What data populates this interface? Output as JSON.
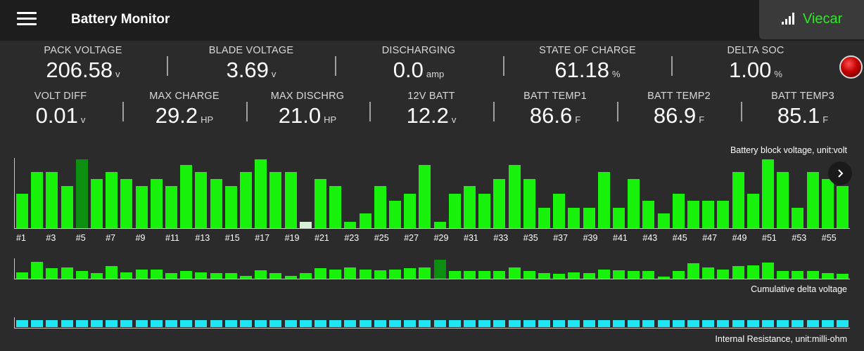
{
  "app": {
    "title": "Battery Monitor",
    "device_label": "Viecar"
  },
  "icons": {
    "menu": "hamburger-menu-icon",
    "signal": "signal-bars-icon",
    "alarm": "red-status-led",
    "next": "chevron-right-icon"
  },
  "colors": {
    "bar_green": "#18f20b",
    "bar_dark": "#0c8f10",
    "bar_pale": "#d8f0d8",
    "cyan": "#1ee6f2",
    "accent": "#31e626"
  },
  "stats_row1": [
    {
      "label": "PACK VOLTAGE",
      "value": "206.58",
      "unit": "v"
    },
    {
      "label": "BLADE VOLTAGE",
      "value": "3.69",
      "unit": "v"
    },
    {
      "label": "DISCHARGING",
      "value": "0.0",
      "unit": "amp"
    },
    {
      "label": "STATE OF CHARGE",
      "value": "61.18",
      "unit": "%"
    },
    {
      "label": "DELTA SOC",
      "value": "1.00",
      "unit": "%"
    }
  ],
  "stats_row2": [
    {
      "label": "VOLT DIFF",
      "value": "0.01",
      "unit": "v"
    },
    {
      "label": "MAX CHARGE",
      "value": "29.2",
      "unit": "HP"
    },
    {
      "label": "MAX DISCHRG",
      "value": "21.0",
      "unit": "HP"
    },
    {
      "label": "12V BATT",
      "value": "12.2",
      "unit": "v"
    },
    {
      "label": "BATT TEMP1",
      "value": "86.6",
      "unit": "F"
    },
    {
      "label": "BATT TEMP2",
      "value": "86.9",
      "unit": "F"
    },
    {
      "label": "BATT TEMP3",
      "value": "85.1",
      "unit": "F"
    }
  ],
  "chart_data": [
    {
      "type": "bar",
      "title": "Battery block voltage, unit:volt",
      "categories": [
        "#1",
        "#2",
        "#3",
        "#4",
        "#5",
        "#6",
        "#7",
        "#8",
        "#9",
        "#10",
        "#11",
        "#12",
        "#13",
        "#14",
        "#15",
        "#16",
        "#17",
        "#18",
        "#19",
        "#20",
        "#21",
        "#22",
        "#23",
        "#24",
        "#25",
        "#26",
        "#27",
        "#28",
        "#29",
        "#30",
        "#31",
        "#32",
        "#33",
        "#34",
        "#35",
        "#36",
        "#37",
        "#38",
        "#39",
        "#40",
        "#41",
        "#42",
        "#43",
        "#44",
        "#45",
        "#46",
        "#47",
        "#48",
        "#49",
        "#50",
        "#51",
        "#52",
        "#53",
        "#54",
        "#55",
        "#56"
      ],
      "tick_labels": [
        "#1",
        "#3",
        "#5",
        "#7",
        "#9",
        "#11",
        "#13",
        "#15",
        "#17",
        "#19",
        "#21",
        "#23",
        "#25",
        "#27",
        "#29",
        "#31",
        "#33",
        "#35",
        "#37",
        "#39",
        "#41",
        "#43",
        "#45",
        "#47",
        "#49",
        "#51",
        "#53",
        "#55"
      ],
      "values": [
        0.5,
        0.82,
        0.82,
        0.61,
        1.0,
        0.71,
        0.82,
        0.71,
        0.61,
        0.71,
        0.61,
        0.92,
        0.82,
        0.71,
        0.61,
        0.82,
        1.0,
        0.82,
        0.82,
        0.09,
        0.71,
        0.61,
        0.09,
        0.21,
        0.61,
        0.4,
        0.5,
        0.92,
        0.09,
        0.5,
        0.61,
        0.5,
        0.71,
        0.92,
        0.71,
        0.3,
        0.5,
        0.3,
        0.3,
        0.82,
        0.3,
        0.71,
        0.4,
        0.21,
        0.5,
        0.4,
        0.4,
        0.4,
        0.82,
        0.5,
        1.0,
        0.82,
        0.3,
        0.82,
        0.71,
        0.61
      ],
      "highlight": {
        "max_index": 4,
        "min_index": 19
      },
      "ylim": [
        0,
        1
      ]
    },
    {
      "type": "bar",
      "title": "Cumulative delta voltage",
      "values": [
        0.35,
        0.9,
        0.55,
        0.6,
        0.4,
        0.3,
        0.65,
        0.35,
        0.5,
        0.5,
        0.3,
        0.4,
        0.35,
        0.3,
        0.3,
        0.15,
        0.45,
        0.3,
        0.15,
        0.3,
        0.55,
        0.5,
        0.6,
        0.5,
        0.45,
        0.5,
        0.55,
        0.6,
        1.0,
        0.4,
        0.4,
        0.4,
        0.4,
        0.6,
        0.4,
        0.3,
        0.25,
        0.35,
        0.3,
        0.5,
        0.45,
        0.4,
        0.4,
        0.1,
        0.4,
        0.8,
        0.6,
        0.5,
        0.65,
        0.7,
        0.85,
        0.4,
        0.4,
        0.4,
        0.3,
        0.25
      ],
      "highlight": {
        "max_index": 28
      },
      "ylim": [
        0,
        1
      ]
    },
    {
      "type": "bar",
      "title": "Internal Resistance, unit:milli-ohm",
      "values": [
        1,
        1,
        1,
        1,
        1,
        1,
        1,
        1,
        1,
        1,
        1,
        1,
        1,
        1,
        1,
        1,
        1,
        1,
        1,
        1,
        1,
        1,
        1,
        1,
        1,
        1,
        1,
        1,
        1,
        1,
        1,
        1,
        1,
        1,
        1,
        1,
        1,
        1,
        1,
        1,
        1,
        1,
        1,
        1,
        1,
        1,
        1,
        1,
        1,
        1,
        1,
        1,
        1,
        1,
        1,
        1
      ],
      "ylim": [
        0,
        1
      ]
    }
  ]
}
